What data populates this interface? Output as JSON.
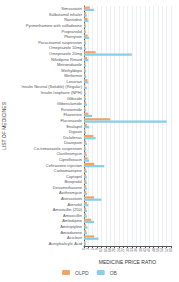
{
  "chart_data": {
    "type": "bar",
    "orientation": "horizontal",
    "xlabel": "MEDICINE PRICE RATIO",
    "ylabel": "LIST OF MEDICINES",
    "categories": [
      "Simvastatin",
      "Salbutamol inhaler",
      "Ranitidine",
      "Pyrimethamine with sulfadoxine",
      "Propranolol",
      "Phenytoin",
      "Paracetamol suspension",
      "Omeprazole 10mg",
      "Omeprazole 20mg",
      "Nifedipine Retard",
      "Metronidazole",
      "Methyldopa",
      "Metformin",
      "Losartan",
      "Insulin Neutral (Soluble) (Regular)",
      "Insulin Isophane (NPH)",
      "Glibicide",
      "Glibenclamide",
      "Furosemide",
      "Fluoxetine",
      "Fluconazole",
      "Enalapril",
      "Digoxin",
      "Diclofenac",
      "Diazepam",
      "Co-trimoxazole suspension",
      "Clarithromycin",
      "Ciprofloxacin",
      "Ceftriaxone injection",
      "Carbamazepine",
      "Captopril",
      "Bisoprolol",
      "Dexamethasone",
      "Azithromycin",
      "Atorvastatin",
      "Atenolol",
      "Amoxicillin (250)",
      "Amoxicillin",
      "Amlodipine",
      "Amitriptyline",
      "Amiodarone",
      "Aciclovir",
      "Acetylsalicylic Acid"
    ],
    "series": [
      {
        "name": "OLPD",
        "color": "#F4A460",
        "values": [
          4.0,
          1.5,
          2.5,
          1.0,
          1.0,
          2.5,
          1.0,
          1.0,
          8.0,
          2.0,
          1.0,
          1.0,
          1.0,
          2.5,
          1.0,
          1.0,
          1.0,
          1.5,
          1.0,
          3.0,
          18.0,
          2.0,
          1.0,
          6.5,
          1.5,
          1.0,
          1.5,
          2.5,
          7.0,
          1.5,
          1.5,
          1.5,
          1.5,
          1.5,
          7.0,
          2.0,
          1.5,
          1.5,
          5.0,
          1.5,
          1.5,
          7.0,
          1.0
        ]
      },
      {
        "name": "OB",
        "color": "#87CEEB",
        "values": [
          7.0,
          2.0,
          3.0,
          1.5,
          1.5,
          3.5,
          1.5,
          1.5,
          33.0,
          3.0,
          1.5,
          1.5,
          1.5,
          3.0,
          2.0,
          1.5,
          1.5,
          2.0,
          1.5,
          5.5,
          57.0,
          3.5,
          1.5,
          8.0,
          2.0,
          1.5,
          2.0,
          3.5,
          14.0,
          2.0,
          2.0,
          2.0,
          2.0,
          2.0,
          12.0,
          3.0,
          2.0,
          2.0,
          7.0,
          2.5,
          2.0,
          10.0,
          1.5
        ]
      }
    ],
    "xlim": [
      0,
      60
    ],
    "xticks": [
      0,
      3,
      6,
      9,
      12,
      15,
      18,
      21,
      24,
      27,
      30,
      33,
      36,
      39,
      42,
      45,
      48,
      51,
      54,
      57,
      60
    ],
    "grid": true,
    "legend": "bottom"
  }
}
